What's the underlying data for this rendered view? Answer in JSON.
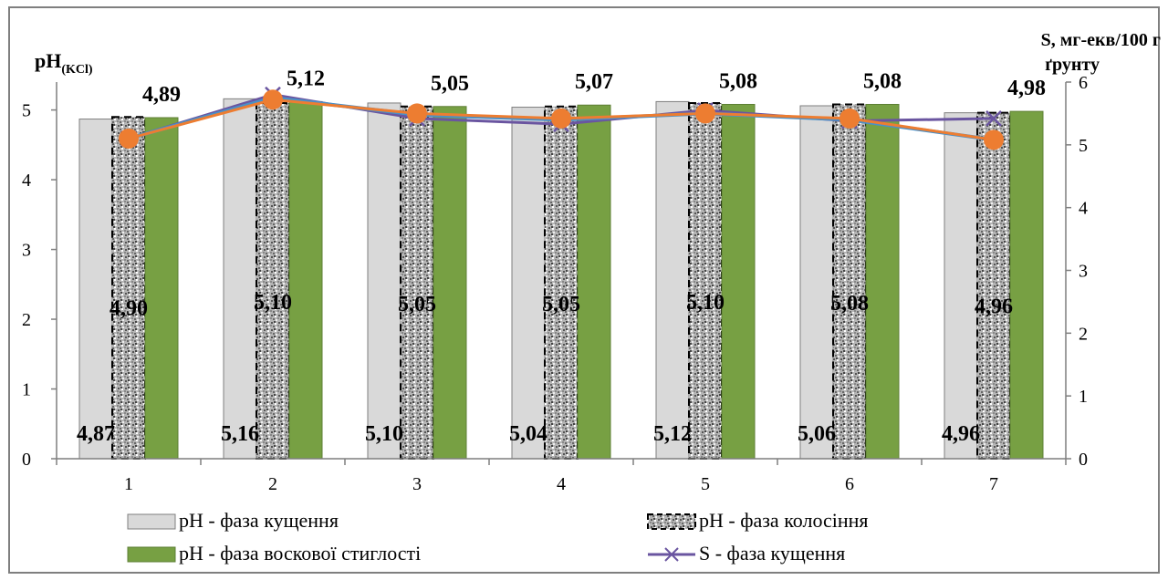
{
  "chart_data": {
    "type": "bar",
    "categories": [
      "1",
      "2",
      "3",
      "4",
      "5",
      "6",
      "7"
    ],
    "y_left": {
      "title_main": "pH",
      "title_sub": "(KCl)",
      "range": [
        0,
        5.4
      ],
      "ticks": [
        "0",
        "1",
        "2",
        "3",
        "4",
        "5"
      ]
    },
    "y_right": {
      "title_line1": "S, мг-екв/100 г",
      "title_line2": "ґрунту",
      "range": [
        0,
        6
      ],
      "ticks": [
        "0",
        "1",
        "2",
        "3",
        "4",
        "5",
        "6"
      ]
    },
    "series": [
      {
        "name": "pH - фаза кущення",
        "type": "bar",
        "axis": "left",
        "values": [
          4.87,
          5.16,
          5.1,
          5.04,
          5.12,
          5.06,
          4.96
        ],
        "labels": [
          "4,87",
          "5,16",
          "5,10",
          "5,04",
          "5,12",
          "5,06",
          "4,96"
        ],
        "color": "#d9d9d9"
      },
      {
        "name": "pH - фаза колосіння",
        "type": "bar",
        "axis": "left",
        "values": [
          4.9,
          5.1,
          5.05,
          5.05,
          5.1,
          5.08,
          4.96
        ],
        "labels": [
          "4,90",
          "5,10",
          "5,05",
          "5,05",
          "5,10",
          "5,08",
          "4,96"
        ],
        "color": "#a6a6a6"
      },
      {
        "name": "pH - фаза воскової стиглості",
        "type": "bar",
        "axis": "left",
        "values": [
          4.89,
          5.12,
          5.05,
          5.07,
          5.08,
          5.08,
          4.98
        ],
        "labels": [
          "4,89",
          "5,12",
          "5,05",
          "5,07",
          "5,08",
          "5,08",
          "4,98"
        ],
        "color": "#77a043"
      },
      {
        "name": "S - фаза кущення",
        "type": "line",
        "axis": "right",
        "values": [
          5.1,
          5.8,
          5.42,
          5.33,
          5.55,
          5.38,
          5.42
        ],
        "color": "#6a55a0"
      },
      {
        "name": "",
        "type": "line",
        "axis": "right",
        "values": [
          5.1,
          5.75,
          5.48,
          5.4,
          5.5,
          5.4,
          5.08
        ],
        "color": "#4a90c8"
      },
      {
        "name": "",
        "type": "line",
        "axis": "right",
        "values": [
          5.1,
          5.72,
          5.5,
          5.42,
          5.5,
          5.42,
          5.08
        ],
        "color": "#ed7d31"
      }
    ],
    "legend": {
      "placement": "bottom"
    },
    "grid": false
  }
}
